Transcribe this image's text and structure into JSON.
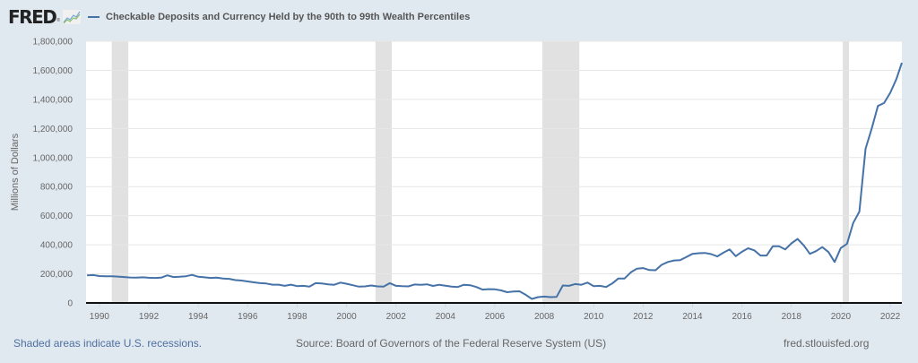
{
  "header": {
    "logo_text": "FRED",
    "logo_reg": "®",
    "series_title": "Checkable Deposits and Currency Held by the 90th to 99th Wealth Percentiles"
  },
  "footer": {
    "recession_note": "Shaded areas indicate U.S. recessions.",
    "source": "Source: Board of Governors of the Federal Reserve System (US)",
    "site": "fred.stlouisfed.org"
  },
  "colors": {
    "line": "#4572a7",
    "recession": "#e1e1e1",
    "background": "#e1e9f0",
    "plot_bg": "#ffffff",
    "gridline": "#e6e6e6"
  },
  "chart_data": {
    "type": "line",
    "title": "Checkable Deposits and Currency Held by the 90th to 99th Wealth Percentiles",
    "xlabel": "",
    "ylabel": "Millions of Dollars",
    "xlim": [
      1989.46,
      2022.47
    ],
    "ylim": [
      0,
      1800000
    ],
    "grid": true,
    "legend": "top-left",
    "x_ticks": [
      1990,
      1992,
      1994,
      1996,
      1998,
      2000,
      2002,
      2004,
      2006,
      2008,
      2010,
      2012,
      2014,
      2016,
      2018,
      2020,
      2022
    ],
    "y_ticks": [
      0,
      200000,
      400000,
      600000,
      800000,
      1000000,
      1200000,
      1400000,
      1600000,
      1800000
    ],
    "y_tick_labels": [
      "0",
      "200,000",
      "400,000",
      "600,000",
      "800,000",
      "1,000,000",
      "1,200,000",
      "1,400,000",
      "1,600,000",
      "1,800,000"
    ],
    "recessions": [
      [
        1990.5,
        1991.17
      ],
      [
        2001.17,
        2001.83
      ],
      [
        2007.92,
        2009.42
      ],
      [
        2020.08,
        2020.33
      ]
    ],
    "series": [
      {
        "name": "Checkable Deposits and Currency Held by the 90th to 99th Wealth Percentiles",
        "x": [
          1989.5,
          1989.75,
          1990,
          1990.25,
          1990.5,
          1990.75,
          1991,
          1991.25,
          1991.5,
          1991.75,
          1992,
          1992.25,
          1992.5,
          1992.75,
          1993,
          1993.25,
          1993.5,
          1993.75,
          1994,
          1994.25,
          1994.5,
          1994.75,
          1995,
          1995.25,
          1995.5,
          1995.75,
          1996,
          1996.25,
          1996.5,
          1996.75,
          1997,
          1997.25,
          1997.5,
          1997.75,
          1998,
          1998.25,
          1998.5,
          1998.75,
          1999,
          1999.25,
          1999.5,
          1999.75,
          2000,
          2000.25,
          2000.5,
          2000.75,
          2001,
          2001.25,
          2001.5,
          2001.75,
          2002,
          2002.25,
          2002.5,
          2002.75,
          2003,
          2003.25,
          2003.5,
          2003.75,
          2004,
          2004.25,
          2004.5,
          2004.75,
          2005,
          2005.25,
          2005.5,
          2005.75,
          2006,
          2006.25,
          2006.5,
          2006.75,
          2007,
          2007.25,
          2007.5,
          2007.75,
          2008,
          2008.25,
          2008.5,
          2008.75,
          2009,
          2009.25,
          2009.5,
          2009.75,
          2010,
          2010.25,
          2010.5,
          2010.75,
          2011,
          2011.25,
          2011.5,
          2011.75,
          2012,
          2012.25,
          2012.5,
          2012.75,
          2013,
          2013.25,
          2013.5,
          2013.75,
          2014,
          2014.25,
          2014.5,
          2014.75,
          2015,
          2015.25,
          2015.5,
          2015.75,
          2016,
          2016.25,
          2016.5,
          2016.75,
          2017,
          2017.25,
          2017.5,
          2017.75,
          2018,
          2018.25,
          2018.5,
          2018.75,
          2019,
          2019.25,
          2019.5,
          2019.75,
          2020,
          2020.25,
          2020.5,
          2020.75,
          2021,
          2021.25,
          2021.5,
          2021.75,
          2022,
          2022.25,
          2022.47
        ],
        "values": [
          190000,
          192000,
          185000,
          184000,
          184000,
          181000,
          178000,
          175000,
          174000,
          176000,
          173000,
          172000,
          174000,
          190000,
          178000,
          180000,
          184000,
          193000,
          180000,
          176000,
          172000,
          174000,
          168000,
          166000,
          157000,
          154000,
          148000,
          142000,
          136000,
          134000,
          126000,
          126000,
          118000,
          126000,
          116000,
          118000,
          112000,
          136000,
          134000,
          128000,
          125000,
          140000,
          132000,
          122000,
          112000,
          114000,
          120000,
          114000,
          112000,
          136000,
          118000,
          115000,
          114000,
          127000,
          125000,
          128000,
          117000,
          125000,
          119000,
          113000,
          110000,
          125000,
          122000,
          110000,
          92000,
          95000,
          94000,
          86000,
          74000,
          78000,
          80000,
          56000,
          28000,
          40000,
          44000,
          40000,
          42000,
          120000,
          118000,
          130000,
          125000,
          140000,
          115000,
          118000,
          110000,
          134000,
          168000,
          168000,
          210000,
          236000,
          240000,
          226000,
          225000,
          262000,
          282000,
          292000,
          294000,
          316000,
          338000,
          342000,
          344000,
          336000,
          320000,
          346000,
          368000,
          322000,
          352000,
          376000,
          362000,
          326000,
          326000,
          390000,
          390000,
          368000,
          410000,
          440000,
          396000,
          338000,
          356000,
          384000,
          350000,
          282000,
          378000,
          406000,
          550000,
          628000,
          1060000,
          1200000,
          1355000,
          1375000,
          1445000,
          1540000,
          1652000
        ]
      }
    ]
  }
}
